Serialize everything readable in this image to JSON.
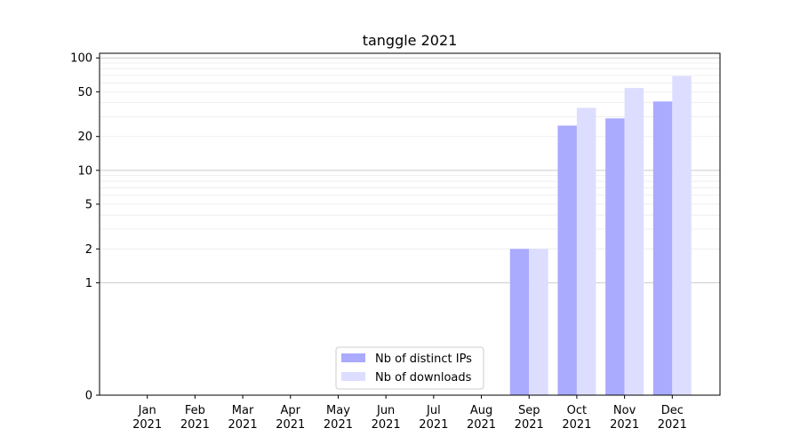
{
  "chart_data": {
    "type": "bar",
    "title": "tanggle 2021",
    "xlabel": "",
    "ylabel": "",
    "yscale": "symlog",
    "ylim": [
      0,
      110
    ],
    "yticks": [
      0,
      1,
      2,
      5,
      10,
      20,
      50,
      100
    ],
    "grid": "y (major and minor)",
    "legend_position": "bottom-center",
    "categories": [
      {
        "month": "Jan",
        "year": "2021"
      },
      {
        "month": "Feb",
        "year": "2021"
      },
      {
        "month": "Mar",
        "year": "2021"
      },
      {
        "month": "Apr",
        "year": "2021"
      },
      {
        "month": "May",
        "year": "2021"
      },
      {
        "month": "Jun",
        "year": "2021"
      },
      {
        "month": "Jul",
        "year": "2021"
      },
      {
        "month": "Aug",
        "year": "2021"
      },
      {
        "month": "Sep",
        "year": "2021"
      },
      {
        "month": "Oct",
        "year": "2021"
      },
      {
        "month": "Nov",
        "year": "2021"
      },
      {
        "month": "Dec",
        "year": "2021"
      }
    ],
    "series": [
      {
        "name": "Nb of distinct IPs",
        "color": "#aaaaff",
        "values": [
          0,
          0,
          0,
          0,
          0,
          0,
          0,
          0,
          2,
          25,
          29,
          41
        ]
      },
      {
        "name": "Nb of downloads",
        "color": "#ddddff",
        "values": [
          0,
          0,
          0,
          0,
          0,
          0,
          0,
          0,
          2,
          36,
          54,
          69
        ]
      }
    ]
  }
}
